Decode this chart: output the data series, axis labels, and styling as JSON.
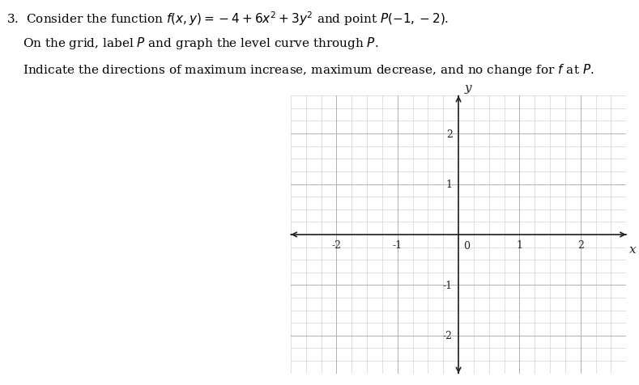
{
  "line1": "3.  Consider the function ",
  "line1_math": "f(x, y) = -4 + 6x² + 3y²",
  "line1_end": " and point ",
  "line1_pt": "P(-1, -2).",
  "line2_pre": "   On the grid, label ",
  "line2_P": "P",
  "line2_post": " and graph the level curve through ",
  "line2_P2": "P",
  "line2_end": ".",
  "line3_pre": "   Indicate the directions of maximum increase, maximum decrease, and no change for ",
  "line3_f": "f",
  "line3_end": " at ",
  "line3_P": "P",
  "line3_final": ".",
  "xlim": [
    -2.75,
    2.75
  ],
  "ylim": [
    -2.75,
    2.75
  ],
  "xticks": [
    -2,
    -1,
    0,
    1,
    2
  ],
  "yticks": [
    -2,
    -1,
    0,
    1,
    2
  ],
  "axis_color": "#222222",
  "grid_color": "#c8c8c8",
  "grid_major_color": "#aaaaaa",
  "background_color": "#ffffff",
  "xlabel": "x",
  "ylabel": "y",
  "tick_fontsize": 9,
  "label_fontsize": 11,
  "text_fontsize": 11
}
